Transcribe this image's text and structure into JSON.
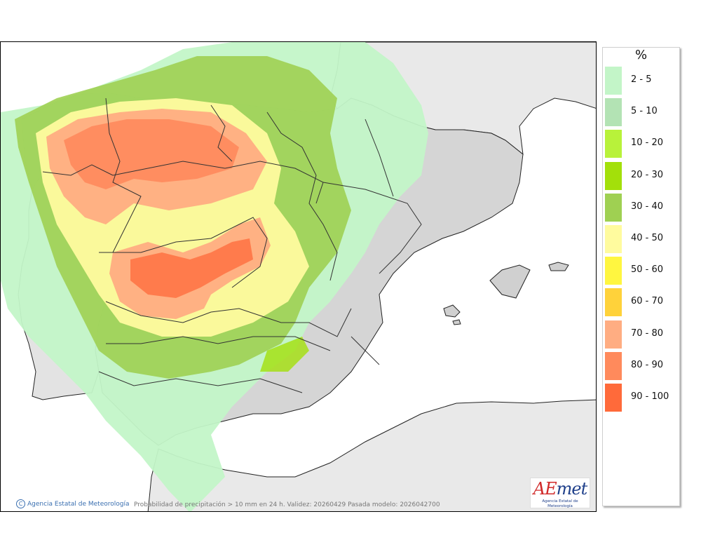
{
  "map": {
    "credit": "Agencia Estatal de Meteorología",
    "caption": "Probabilidad de precipitación > 10 mm en 24 h. Validez: 20260429 Pasada modelo: 2026042700",
    "logo": {
      "mark_a": "A",
      "mark_e": "E",
      "mark_rest": "met",
      "subtitle": "Agencia Estatal de Meteorología"
    },
    "colors": {
      "sea": "#ffffff",
      "land_other": "#e9e9e9",
      "relief": "#c8c8c8",
      "borders": "#222222"
    }
  },
  "legend": {
    "unit": "%",
    "items": [
      {
        "label": "2 - 5",
        "color": "#c3f5c8"
      },
      {
        "label": "5 - 10",
        "color": "#b3e3b4"
      },
      {
        "label": "10 - 20",
        "color": "#b8f23a"
      },
      {
        "label": "20 - 30",
        "color": "#a3e00a"
      },
      {
        "label": "30 - 40",
        "color": "#9fd052"
      },
      {
        "label": "40 - 50",
        "color": "#fffb9e"
      },
      {
        "label": "50 - 60",
        "color": "#fff640"
      },
      {
        "label": "60 - 70",
        "color": "#ffd23a"
      },
      {
        "label": "70 - 80",
        "color": "#ffad82"
      },
      {
        "label": "80 - 90",
        "color": "#ff8a5c"
      },
      {
        "label": "90 - 100",
        "color": "#ff6a3a"
      }
    ]
  }
}
